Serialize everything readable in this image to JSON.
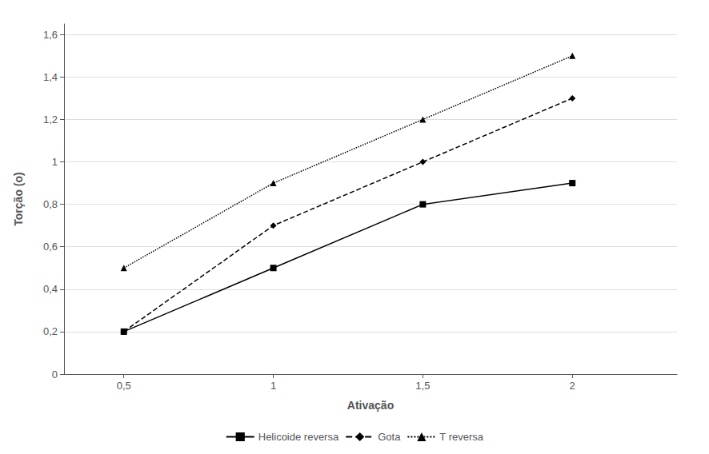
{
  "chart_data": {
    "type": "line",
    "xlabel": "Ativação",
    "ylabel": "Torção (o)",
    "x": [
      0.5,
      1.0,
      1.5,
      2.0
    ],
    "series": [
      {
        "name": "Helicoide reversa",
        "color": "#000000",
        "marker": "square",
        "line_style": "solid",
        "values": [
          0.2,
          0.5,
          0.8,
          0.9
        ]
      },
      {
        "name": "Gota",
        "color": "#000000",
        "marker": "diamond",
        "line_style": "dashed",
        "values": [
          0.2,
          0.7,
          1.0,
          1.3
        ]
      },
      {
        "name": "T reversa",
        "color": "#000000",
        "marker": "triangle",
        "line_style": "dotted",
        "values": [
          0.5,
          0.9,
          1.2,
          1.5
        ]
      }
    ],
    "xlim": [
      0.3,
      2.35
    ],
    "xticks": [
      {
        "value": 0.5,
        "label": "0,5"
      },
      1,
      {
        "value": 1.5,
        "label": "1,5"
      },
      2
    ],
    "ylim": [
      0,
      1.65
    ],
    "yticks": [
      0,
      {
        "value": 0.2,
        "label": "0,2"
      },
      {
        "value": 0.4,
        "label": "0,4"
      },
      {
        "value": 0.6,
        "label": "0,6"
      },
      {
        "value": 0.8,
        "label": "0,8"
      },
      1,
      {
        "value": 1.2,
        "label": "1,2"
      },
      {
        "value": 1.4,
        "label": "1,4"
      },
      {
        "value": 1.6,
        "label": "1,6"
      }
    ],
    "grid": true,
    "legend": "bottom"
  }
}
